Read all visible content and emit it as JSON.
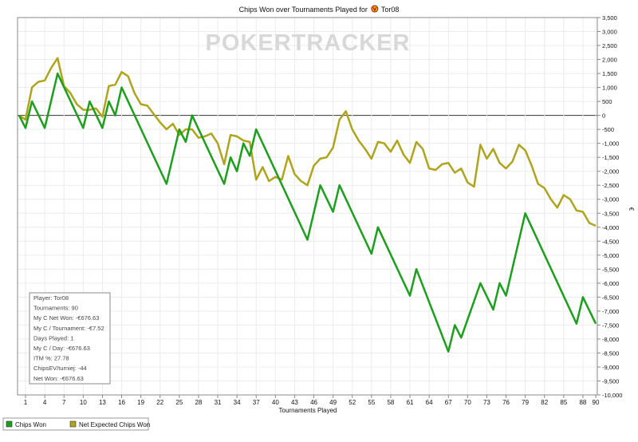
{
  "chart_data": {
    "type": "line",
    "title": "Chips Won over Tournaments Played for",
    "player_name": "Tor08",
    "player_icon": "poker-stars-logo-icon",
    "watermark": "POKERTRACKER",
    "xlabel": "Tournaments Played",
    "ylabel": "€",
    "x_range": [
      0,
      90
    ],
    "ylim": [
      -10000,
      3500
    ],
    "x_ticks": [
      1,
      4,
      7,
      10,
      13,
      16,
      19,
      22,
      25,
      28,
      31,
      34,
      37,
      40,
      43,
      46,
      49,
      52,
      55,
      58,
      61,
      64,
      67,
      70,
      73,
      76,
      79,
      82,
      85,
      88,
      90
    ],
    "y_ticks": [
      3500,
      3000,
      2500,
      2000,
      1500,
      1000,
      500,
      0,
      -500,
      -1000,
      -1500,
      -2000,
      -2500,
      -3000,
      -3500,
      -4000,
      -4500,
      -5000,
      -5500,
      -6000,
      -6500,
      -7000,
      -7500,
      -8000,
      -8500,
      -9000,
      -9500,
      -10000
    ],
    "y_tick_labels": [
      "3,500",
      "3,000",
      "2,500",
      "2,000",
      "1,500",
      "1,000",
      "500",
      "0",
      "-500",
      "-1,000",
      "-1,500",
      "-2,000",
      "-2,500",
      "-3,000",
      "-3,500",
      "-4,000",
      "-4,500",
      "-5,000",
      "-5,500",
      "-6,000",
      "-6,500",
      "-7,000",
      "-7,500",
      "-8,000",
      "-8,500",
      "-9,000",
      "-9,500",
      "-10,000"
    ],
    "grid": true,
    "legend_position": "bottom-left",
    "series": [
      {
        "name": "Chips Won",
        "color": "#1aa01a",
        "points": [
          [
            0,
            0
          ],
          [
            1,
            -450
          ],
          [
            2,
            500
          ],
          [
            4,
            -450
          ],
          [
            6,
            1500
          ],
          [
            10,
            -450
          ],
          [
            11,
            500
          ],
          [
            13,
            -450
          ],
          [
            14,
            500
          ],
          [
            15,
            0
          ],
          [
            16,
            1000
          ],
          [
            23,
            -2450
          ],
          [
            25,
            -500
          ],
          [
            26,
            -950
          ],
          [
            27,
            0
          ],
          [
            32,
            -2450
          ],
          [
            33,
            -1500
          ],
          [
            34,
            -2000
          ],
          [
            35,
            -1000
          ],
          [
            36,
            -1450
          ],
          [
            37,
            -500
          ],
          [
            45,
            -4450
          ],
          [
            47,
            -2500
          ],
          [
            49,
            -3450
          ],
          [
            50,
            -2500
          ],
          [
            55,
            -4950
          ],
          [
            56,
            -4000
          ],
          [
            61,
            -6450
          ],
          [
            62,
            -5500
          ],
          [
            67,
            -8450
          ],
          [
            68,
            -7500
          ],
          [
            69,
            -7950
          ],
          [
            72,
            -6000
          ],
          [
            74,
            -6950
          ],
          [
            75,
            -6000
          ],
          [
            76,
            -6450
          ],
          [
            79,
            -3500
          ],
          [
            87,
            -7450
          ],
          [
            88,
            -6500
          ],
          [
            90,
            -7450
          ]
        ]
      },
      {
        "name": "Net Expected Chips Won",
        "color": "#b0a41c",
        "points": [
          [
            0,
            0
          ],
          [
            1,
            -150
          ],
          [
            2,
            1000
          ],
          [
            3,
            1200
          ],
          [
            4,
            1250
          ],
          [
            5,
            1700
          ],
          [
            6,
            2050
          ],
          [
            7,
            1050
          ],
          [
            8,
            800
          ],
          [
            9,
            400
          ],
          [
            10,
            200
          ],
          [
            11,
            200
          ],
          [
            12,
            250
          ],
          [
            13,
            -50
          ],
          [
            14,
            1050
          ],
          [
            15,
            1100
          ],
          [
            16,
            1550
          ],
          [
            17,
            1400
          ],
          [
            18,
            800
          ],
          [
            19,
            400
          ],
          [
            20,
            350
          ],
          [
            21,
            50
          ],
          [
            22,
            -250
          ],
          [
            23,
            -500
          ],
          [
            24,
            -300
          ],
          [
            25,
            -700
          ],
          [
            26,
            -500
          ],
          [
            27,
            -500
          ],
          [
            28,
            -800
          ],
          [
            29,
            -750
          ],
          [
            30,
            -650
          ],
          [
            31,
            -1000
          ],
          [
            32,
            -1750
          ],
          [
            33,
            -700
          ],
          [
            34,
            -750
          ],
          [
            35,
            -900
          ],
          [
            36,
            -950
          ],
          [
            37,
            -2300
          ],
          [
            38,
            -1850
          ],
          [
            39,
            -2350
          ],
          [
            40,
            -2200
          ],
          [
            41,
            -2300
          ],
          [
            42,
            -1450
          ],
          [
            43,
            -2100
          ],
          [
            44,
            -2350
          ],
          [
            45,
            -2500
          ],
          [
            46,
            -1800
          ],
          [
            47,
            -1550
          ],
          [
            48,
            -1500
          ],
          [
            49,
            -1150
          ],
          [
            50,
            -150
          ],
          [
            51,
            150
          ],
          [
            52,
            -500
          ],
          [
            53,
            -900
          ],
          [
            54,
            -1200
          ],
          [
            55,
            -1550
          ],
          [
            56,
            -950
          ],
          [
            57,
            -1000
          ],
          [
            58,
            -1300
          ],
          [
            59,
            -900
          ],
          [
            60,
            -1400
          ],
          [
            61,
            -1700
          ],
          [
            62,
            -950
          ],
          [
            63,
            -1200
          ],
          [
            64,
            -1900
          ],
          [
            65,
            -1950
          ],
          [
            66,
            -1750
          ],
          [
            67,
            -1700
          ],
          [
            68,
            -2050
          ],
          [
            69,
            -1900
          ],
          [
            70,
            -2400
          ],
          [
            71,
            -2550
          ],
          [
            72,
            -1050
          ],
          [
            73,
            -1550
          ],
          [
            74,
            -1200
          ],
          [
            75,
            -1700
          ],
          [
            76,
            -1900
          ],
          [
            77,
            -1650
          ],
          [
            78,
            -1050
          ],
          [
            79,
            -1250
          ],
          [
            80,
            -1800
          ],
          [
            81,
            -2450
          ],
          [
            82,
            -2600
          ],
          [
            83,
            -3000
          ],
          [
            84,
            -3300
          ],
          [
            85,
            -2850
          ],
          [
            86,
            -3000
          ],
          [
            87,
            -3400
          ],
          [
            88,
            -3450
          ],
          [
            89,
            -3850
          ],
          [
            90,
            -3950
          ]
        ]
      }
    ]
  },
  "stats_box": {
    "lines": [
      "Player: Tor08",
      "Tournaments: 90",
      "My C Net Won: -€676.63",
      "My C / Tournament: -€7.52",
      "Days Played: 1",
      "My C / Day: -€676.63",
      "ITM %: 27.78",
      "ChipsEV/turniej: -44",
      "Net Won: -€676.63"
    ]
  },
  "legend": {
    "items": [
      {
        "label": "Chips Won",
        "color": "#1aa01a"
      },
      {
        "label": "Net Expected Chips Won",
        "color": "#b0a41c"
      }
    ]
  }
}
